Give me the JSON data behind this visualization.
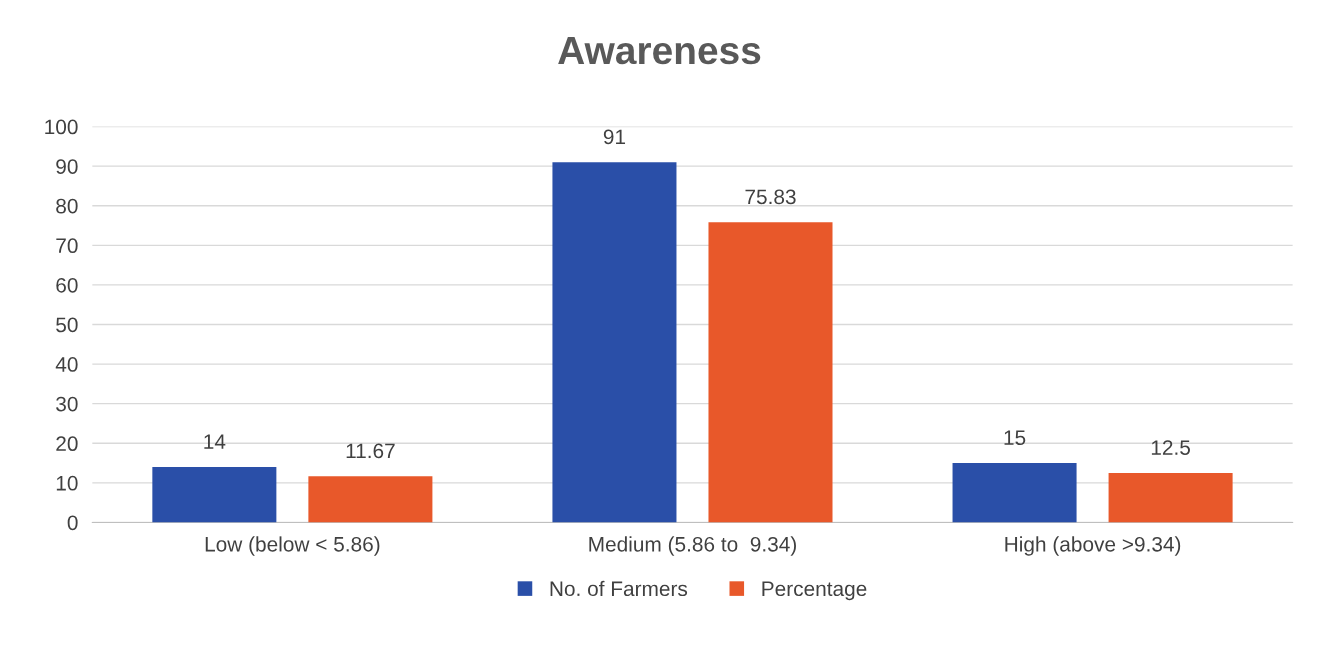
{
  "chart_data": {
    "type": "bar",
    "title": "Awareness",
    "categories": [
      "Low (below < 5.86)",
      "Medium (5.86 to  9.34)",
      "High (above >9.34)"
    ],
    "series": [
      {
        "name": "No. of Farmers",
        "color": "#2a4fa8",
        "values": [
          14,
          91,
          15
        ]
      },
      {
        "name": "Percentage",
        "color": "#e8582a",
        "values": [
          11.67,
          75.83,
          12.5
        ]
      }
    ],
    "ylim": [
      0,
      100
    ],
    "yticks": [
      0,
      10,
      20,
      30,
      40,
      50,
      60,
      70,
      80,
      90,
      100
    ],
    "grid": "y",
    "legend": "bottom",
    "data_labels": true
  }
}
